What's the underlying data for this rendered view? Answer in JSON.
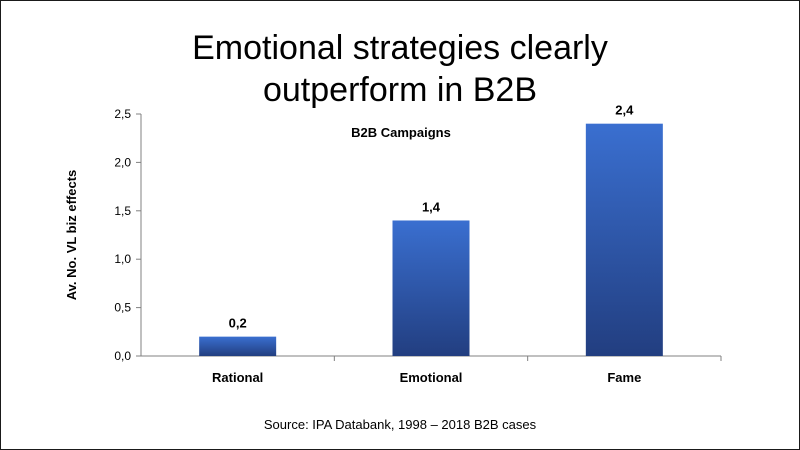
{
  "title_lines": [
    "Emotional strategies clearly",
    "outperform in B2B"
  ],
  "source": "Source: IPA Databank, 1998 – 2018 B2B cases",
  "colors": {
    "bar_top": "#3a6fd0",
    "bar_bottom": "#223e80",
    "axis": "#808080",
    "text": "#000000"
  },
  "chart_data": {
    "type": "bar",
    "title": "Emotional strategies clearly outperform in B2B",
    "subtitle": "B2B Campaigns",
    "categories": [
      "Rational",
      "Emotional",
      "Fame"
    ],
    "values": [
      0.2,
      1.4,
      2.4
    ],
    "value_labels": [
      "0,2",
      "1,4",
      "2,4"
    ],
    "ylabel": "Av. No. VL biz effects",
    "xlabel": "",
    "ylim": [
      0,
      2.5
    ],
    "yticks": [
      0,
      0.5,
      1.0,
      1.5,
      2.0,
      2.5
    ],
    "ytick_labels": [
      "0,0",
      "0,5",
      "1,0",
      "1,5",
      "2,0",
      "2,5"
    ],
    "grid": false,
    "legend": "none"
  }
}
